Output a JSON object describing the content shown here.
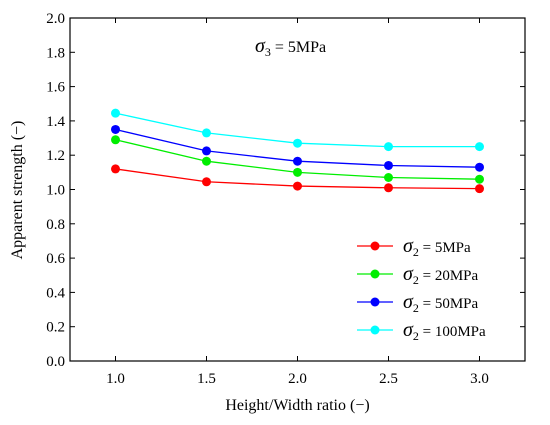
{
  "chart_data": {
    "type": "line",
    "xlabel": "Height/Width ratio (−)",
    "ylabel": "Apparent strength (−)",
    "annotation": {
      "symbol": "σ",
      "subscript": "3",
      "text": " = 5MPa"
    },
    "x": [
      1.0,
      1.5,
      2.0,
      2.5,
      3.0
    ],
    "xlim": [
      0.75,
      3.25
    ],
    "ylim": [
      0.0,
      2.0
    ],
    "xticks": [
      1.0,
      1.5,
      2.0,
      2.5,
      3.0
    ],
    "xtick_labels": [
      "1.0",
      "1.5",
      "2.0",
      "2.5",
      "3.0"
    ],
    "yticks": [
      0.0,
      0.2,
      0.4,
      0.6,
      0.8,
      1.0,
      1.2,
      1.4,
      1.6,
      1.8,
      2.0
    ],
    "ytick_labels": [
      "0.0",
      "0.2",
      "0.4",
      "0.6",
      "0.8",
      "1.0",
      "1.2",
      "1.4",
      "1.6",
      "1.8",
      "2.0"
    ],
    "legend_position": "bottom-right",
    "grid": false,
    "series": [
      {
        "symbol": "σ",
        "subscript": "2",
        "text": " = 5MPa",
        "color": "#ff0000",
        "values": [
          1.12,
          1.045,
          1.02,
          1.01,
          1.005
        ]
      },
      {
        "symbol": "σ",
        "subscript": "2",
        "text": " = 20MPa",
        "color": "#00ee00",
        "values": [
          1.29,
          1.165,
          1.1,
          1.07,
          1.06
        ]
      },
      {
        "symbol": "σ",
        "subscript": "2",
        "text": " = 50MPa",
        "color": "#0000ff",
        "values": [
          1.35,
          1.225,
          1.165,
          1.14,
          1.13
        ]
      },
      {
        "symbol": "σ",
        "subscript": "2",
        "text": " = 100MPa",
        "color": "#00ffff",
        "values": [
          1.445,
          1.33,
          1.27,
          1.25,
          1.25
        ]
      }
    ]
  }
}
